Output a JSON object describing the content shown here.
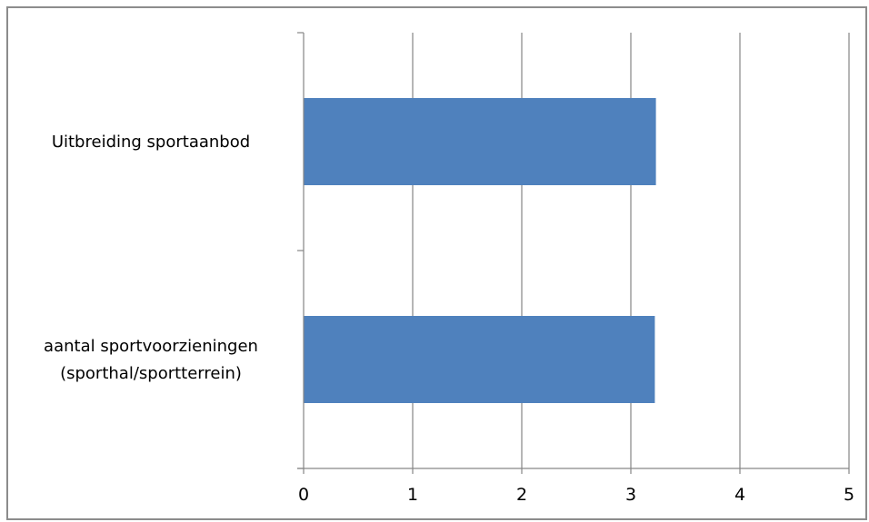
{
  "chart_data": {
    "type": "bar",
    "orientation": "horizontal",
    "categories": [
      [
        "Uitbreiding sportaanbod"
      ],
      [
        "aantal sportvoorzieningen",
        "(sporthal/sportterrein)"
      ]
    ],
    "values": [
      3.23,
      3.22
    ],
    "xlim": [
      0,
      5
    ],
    "x_ticks": [
      0,
      1,
      2,
      3,
      4,
      5
    ],
    "grid": "vertical",
    "legend": "none",
    "colors": {
      "bar": "#4f81bd",
      "grid": "#868686",
      "axis": "#868686",
      "frame": "#8c8c8c"
    }
  }
}
